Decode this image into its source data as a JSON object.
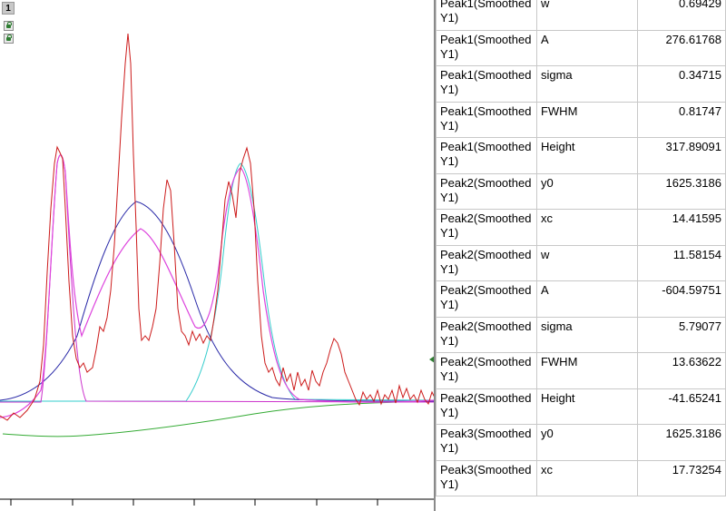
{
  "graph": {
    "layer_label": "1",
    "colors": {
      "data": "#cc1a1a",
      "peak1": "#cc33cc",
      "peak2": "#2a2aa8",
      "peak3": "#33cccc",
      "cumulative": "#dd44dd",
      "baseline": "#33aa33"
    }
  },
  "table": {
    "rows": [
      {
        "name": "Peak1(Smoothed Y1)",
        "param": "w",
        "value": "0.69429"
      },
      {
        "name": "Peak1(Smoothed Y1)",
        "param": "A",
        "value": "276.61768"
      },
      {
        "name": "Peak1(Smoothed Y1)",
        "param": "sigma",
        "value": "0.34715"
      },
      {
        "name": "Peak1(Smoothed Y1)",
        "param": "FWHM",
        "value": "0.81747"
      },
      {
        "name": "Peak1(Smoothed Y1)",
        "param": "Height",
        "value": "317.89091"
      },
      {
        "name": "Peak2(Smoothed Y1)",
        "param": "y0",
        "value": "1625.3186"
      },
      {
        "name": "Peak2(Smoothed Y1)",
        "param": "xc",
        "value": "14.41595"
      },
      {
        "name": "Peak2(Smoothed Y1)",
        "param": "w",
        "value": "11.58154"
      },
      {
        "name": "Peak2(Smoothed Y1)",
        "param": "A",
        "value": "-604.59751"
      },
      {
        "name": "Peak2(Smoothed Y1)",
        "param": "sigma",
        "value": "5.79077"
      },
      {
        "name": "Peak2(Smoothed Y1)",
        "param": "FWHM",
        "value": "13.63622"
      },
      {
        "name": "Peak2(Smoothed Y1)",
        "param": "Height",
        "value": "-41.65241"
      },
      {
        "name": "Peak3(Smoothed Y1)",
        "param": "y0",
        "value": "1625.3186"
      },
      {
        "name": "Peak3(Smoothed Y1)",
        "param": "xc",
        "value": "17.73254"
      }
    ]
  }
}
